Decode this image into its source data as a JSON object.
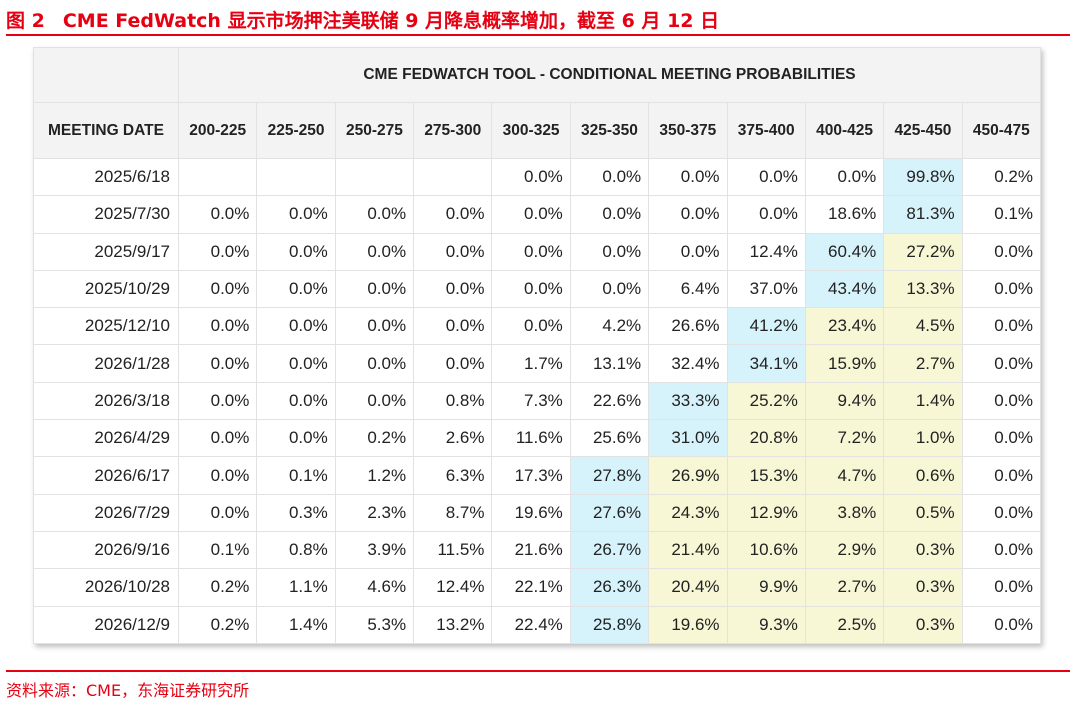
{
  "figure": {
    "label": "图 2",
    "title": "CME FedWatch 显示市场押注美联储 9 月降息概率增加，截至 6 月 12 日"
  },
  "source": "资料来源：CME，东海证券研究所",
  "colors": {
    "accent": "#e60012",
    "max_highlight": "#d6f3fb",
    "secondary_highlight": "#f7f7d6"
  },
  "table": {
    "caption": "CME FEDWATCH TOOL - CONDITIONAL MEETING PROBABILITIES",
    "date_header": "MEETING DATE",
    "columns": [
      "200-225",
      "225-250",
      "250-275",
      "275-300",
      "300-325",
      "325-350",
      "350-375",
      "375-400",
      "400-425",
      "425-450",
      "450-475"
    ],
    "rows": [
      {
        "date": "2025/6/18",
        "values": [
          "",
          "",
          "",
          "",
          "0.0%",
          "0.0%",
          "0.0%",
          "0.0%",
          "0.0%",
          "99.8%",
          "0.2%"
        ],
        "highlight": [
          "",
          "",
          "",
          "",
          "",
          "",
          "",
          "",
          "",
          "b",
          ""
        ]
      },
      {
        "date": "2025/7/30",
        "values": [
          "0.0%",
          "0.0%",
          "0.0%",
          "0.0%",
          "0.0%",
          "0.0%",
          "0.0%",
          "0.0%",
          "18.6%",
          "81.3%",
          "0.1%"
        ],
        "highlight": [
          "",
          "",
          "",
          "",
          "",
          "",
          "",
          "",
          "",
          "b",
          ""
        ]
      },
      {
        "date": "2025/9/17",
        "values": [
          "0.0%",
          "0.0%",
          "0.0%",
          "0.0%",
          "0.0%",
          "0.0%",
          "0.0%",
          "12.4%",
          "60.4%",
          "27.2%",
          "0.0%"
        ],
        "highlight": [
          "",
          "",
          "",
          "",
          "",
          "",
          "",
          "",
          "b",
          "y",
          ""
        ]
      },
      {
        "date": "2025/10/29",
        "values": [
          "0.0%",
          "0.0%",
          "0.0%",
          "0.0%",
          "0.0%",
          "0.0%",
          "6.4%",
          "37.0%",
          "43.4%",
          "13.3%",
          "0.0%"
        ],
        "highlight": [
          "",
          "",
          "",
          "",
          "",
          "",
          "",
          "",
          "b",
          "y",
          ""
        ]
      },
      {
        "date": "2025/12/10",
        "values": [
          "0.0%",
          "0.0%",
          "0.0%",
          "0.0%",
          "0.0%",
          "4.2%",
          "26.6%",
          "41.2%",
          "23.4%",
          "4.5%",
          "0.0%"
        ],
        "highlight": [
          "",
          "",
          "",
          "",
          "",
          "",
          "",
          "b",
          "y",
          "y",
          ""
        ]
      },
      {
        "date": "2026/1/28",
        "values": [
          "0.0%",
          "0.0%",
          "0.0%",
          "0.0%",
          "1.7%",
          "13.1%",
          "32.4%",
          "34.1%",
          "15.9%",
          "2.7%",
          "0.0%"
        ],
        "highlight": [
          "",
          "",
          "",
          "",
          "",
          "",
          "",
          "b",
          "y",
          "y",
          ""
        ]
      },
      {
        "date": "2026/3/18",
        "values": [
          "0.0%",
          "0.0%",
          "0.0%",
          "0.8%",
          "7.3%",
          "22.6%",
          "33.3%",
          "25.2%",
          "9.4%",
          "1.4%",
          "0.0%"
        ],
        "highlight": [
          "",
          "",
          "",
          "",
          "",
          "",
          "b",
          "y",
          "y",
          "y",
          ""
        ]
      },
      {
        "date": "2026/4/29",
        "values": [
          "0.0%",
          "0.0%",
          "0.2%",
          "2.6%",
          "11.6%",
          "25.6%",
          "31.0%",
          "20.8%",
          "7.2%",
          "1.0%",
          "0.0%"
        ],
        "highlight": [
          "",
          "",
          "",
          "",
          "",
          "",
          "b",
          "y",
          "y",
          "y",
          ""
        ]
      },
      {
        "date": "2026/6/17",
        "values": [
          "0.0%",
          "0.1%",
          "1.2%",
          "6.3%",
          "17.3%",
          "27.8%",
          "26.9%",
          "15.3%",
          "4.7%",
          "0.6%",
          "0.0%"
        ],
        "highlight": [
          "",
          "",
          "",
          "",
          "",
          "b",
          "y",
          "y",
          "y",
          "y",
          ""
        ]
      },
      {
        "date": "2026/7/29",
        "values": [
          "0.0%",
          "0.3%",
          "2.3%",
          "8.7%",
          "19.6%",
          "27.6%",
          "24.3%",
          "12.9%",
          "3.8%",
          "0.5%",
          "0.0%"
        ],
        "highlight": [
          "",
          "",
          "",
          "",
          "",
          "b",
          "y",
          "y",
          "y",
          "y",
          ""
        ]
      },
      {
        "date": "2026/9/16",
        "values": [
          "0.1%",
          "0.8%",
          "3.9%",
          "11.5%",
          "21.6%",
          "26.7%",
          "21.4%",
          "10.6%",
          "2.9%",
          "0.3%",
          "0.0%"
        ],
        "highlight": [
          "",
          "",
          "",
          "",
          "",
          "b",
          "y",
          "y",
          "y",
          "y",
          ""
        ]
      },
      {
        "date": "2026/10/28",
        "values": [
          "0.2%",
          "1.1%",
          "4.6%",
          "12.4%",
          "22.1%",
          "26.3%",
          "20.4%",
          "9.9%",
          "2.7%",
          "0.3%",
          "0.0%"
        ],
        "highlight": [
          "",
          "",
          "",
          "",
          "",
          "b",
          "y",
          "y",
          "y",
          "y",
          ""
        ]
      },
      {
        "date": "2026/12/9",
        "values": [
          "0.2%",
          "1.4%",
          "5.3%",
          "13.2%",
          "22.4%",
          "25.8%",
          "19.6%",
          "9.3%",
          "2.5%",
          "0.3%",
          "0.0%"
        ],
        "highlight": [
          "",
          "",
          "",
          "",
          "",
          "b",
          "y",
          "y",
          "y",
          "y",
          ""
        ]
      }
    ]
  }
}
